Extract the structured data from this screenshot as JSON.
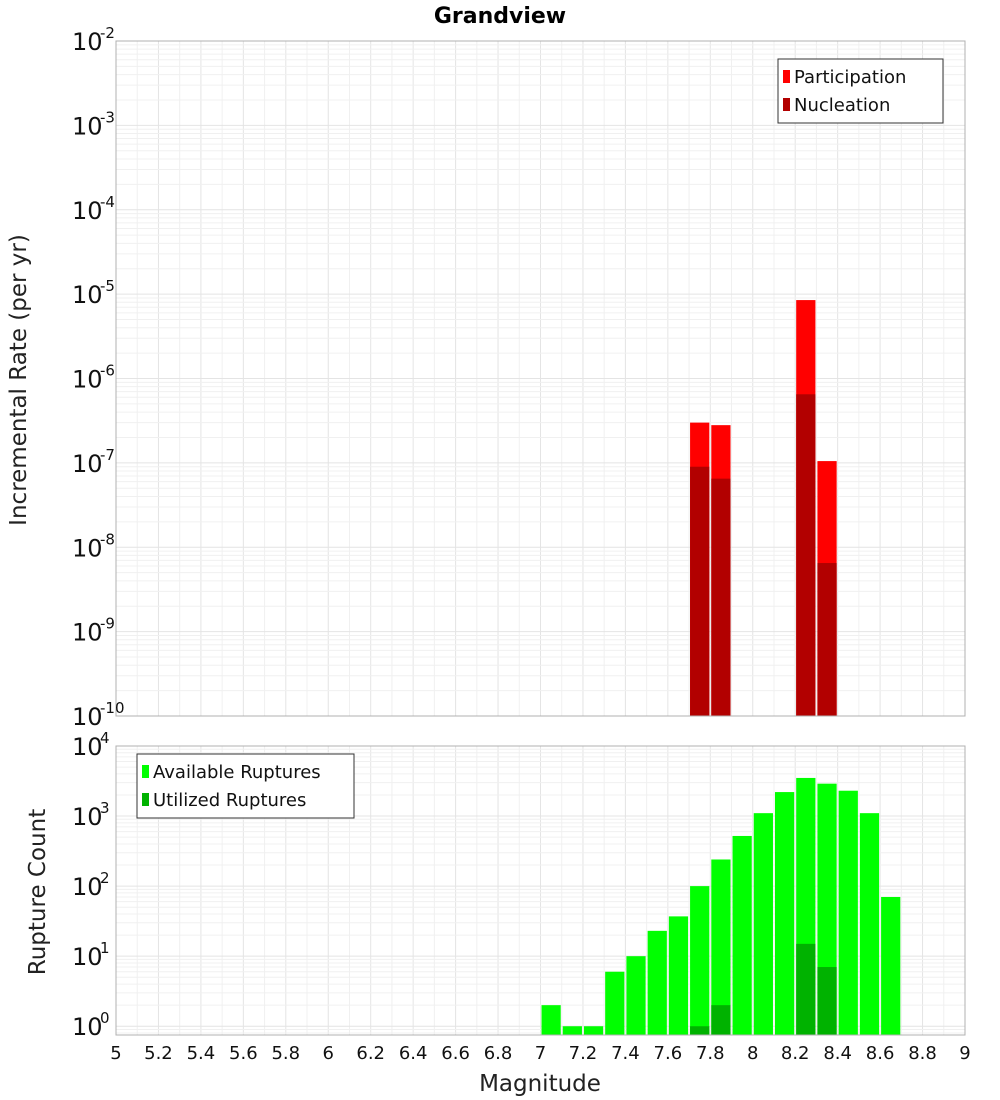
{
  "title": "Grandview",
  "colors": {
    "participation": "#ff0000",
    "nucleation": "#b20000",
    "available": "#00ff00",
    "utilized": "#00b200",
    "frame": "#b0b0b0",
    "grid": "#e4e4e4"
  },
  "chart_data": [
    {
      "type": "bar",
      "title": "Grandview",
      "xlabel": "",
      "ylabel": "Incremental Rate (per yr)",
      "yscale": "log",
      "ylim": [
        1e-10,
        0.01
      ],
      "xlim": [
        5,
        9
      ],
      "ytick_exponents": [
        "-10",
        "-9",
        "-8",
        "-7",
        "-6",
        "-5",
        "-4",
        "-3",
        "-2"
      ],
      "ytick_base": "10",
      "grid": true,
      "legend_position": "top-right",
      "bar_width": 0.1,
      "series": [
        {
          "name": "Participation",
          "color": "#ff0000",
          "points": [
            {
              "x": 7.75,
              "y": 3e-07
            },
            {
              "x": 7.85,
              "y": 2.8e-07
            },
            {
              "x": 8.25,
              "y": 8.5e-06
            },
            {
              "x": 8.35,
              "y": 1.05e-07
            }
          ]
        },
        {
          "name": "Nucleation",
          "color": "#b20000",
          "points": [
            {
              "x": 7.75,
              "y": 9e-08
            },
            {
              "x": 7.85,
              "y": 6.5e-08
            },
            {
              "x": 8.25,
              "y": 6.5e-07
            },
            {
              "x": 8.35,
              "y": 6.5e-09
            }
          ]
        }
      ]
    },
    {
      "type": "bar",
      "xlabel": "Magnitude",
      "ylabel": "Rupture Count",
      "yscale": "log",
      "ylim": [
        0.75,
        10000
      ],
      "xlim": [
        5,
        9
      ],
      "ytick_exponents": [
        "0",
        "1",
        "2",
        "3",
        "4"
      ],
      "ytick_base": "10",
      "xticks": [
        "5",
        "5.2",
        "5.4",
        "5.6",
        "5.8",
        "6",
        "6.2",
        "6.4",
        "6.6",
        "6.8",
        "7",
        "7.2",
        "7.4",
        "7.6",
        "7.8",
        "8",
        "8.2",
        "8.4",
        "8.6",
        "8.8",
        "9"
      ],
      "grid": true,
      "legend_position": "top-left",
      "bar_width": 0.1,
      "series": [
        {
          "name": "Available Ruptures",
          "color": "#00ff00",
          "points": [
            {
              "x": 7.05,
              "y": 2
            },
            {
              "x": 7.15,
              "y": 1
            },
            {
              "x": 7.25,
              "y": 1
            },
            {
              "x": 7.35,
              "y": 6
            },
            {
              "x": 7.45,
              "y": 10
            },
            {
              "x": 7.55,
              "y": 23
            },
            {
              "x": 7.65,
              "y": 37
            },
            {
              "x": 7.75,
              "y": 100
            },
            {
              "x": 7.85,
              "y": 240
            },
            {
              "x": 7.95,
              "y": 520
            },
            {
              "x": 8.05,
              "y": 1100
            },
            {
              "x": 8.15,
              "y": 2200
            },
            {
              "x": 8.25,
              "y": 3500
            },
            {
              "x": 8.35,
              "y": 2900
            },
            {
              "x": 8.45,
              "y": 2300
            },
            {
              "x": 8.55,
              "y": 1100
            },
            {
              "x": 8.65,
              "y": 70
            }
          ]
        },
        {
          "name": "Utilized Ruptures",
          "color": "#00b200",
          "points": [
            {
              "x": 7.75,
              "y": 1
            },
            {
              "x": 7.85,
              "y": 2
            },
            {
              "x": 8.25,
              "y": 15
            },
            {
              "x": 8.35,
              "y": 7
            }
          ]
        }
      ]
    }
  ]
}
